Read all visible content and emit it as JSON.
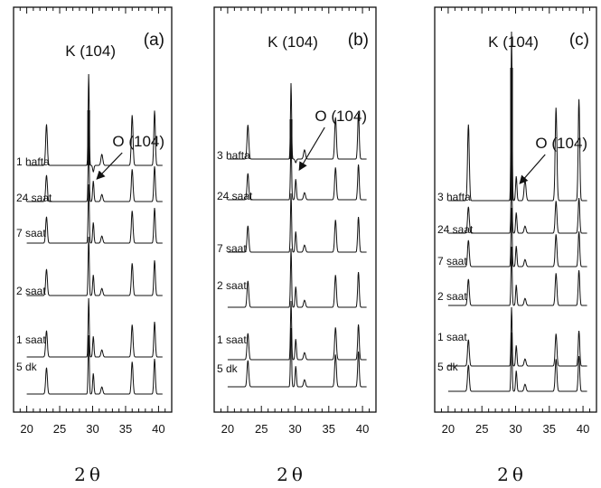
{
  "chart_data": [
    {
      "type": "line",
      "panel_label": "(a)",
      "xlabel": "2θ",
      "xlim": [
        18,
        42
      ],
      "xticks": [
        20,
        25,
        30,
        35,
        40
      ],
      "annotations": [
        {
          "text": "K (104)",
          "x": 29.4
        },
        {
          "text": "O (104)",
          "x": 30.1,
          "arrow": true
        }
      ],
      "series": [
        {
          "name": "1 hafta"
        },
        {
          "name": "24 saat"
        },
        {
          "name": "7 saat"
        },
        {
          "name": "2 saat"
        },
        {
          "name": "1 saat"
        },
        {
          "name": "5 dk"
        }
      ]
    },
    {
      "type": "line",
      "panel_label": "(b)",
      "xlabel": "2θ",
      "xlim": [
        18,
        42
      ],
      "xticks": [
        20,
        25,
        30,
        35,
        40
      ],
      "annotations": [
        {
          "text": "K (104)",
          "x": 29.4
        },
        {
          "text": "O (104)",
          "x": 30.1,
          "arrow": true
        }
      ],
      "series": [
        {
          "name": "3 hafta"
        },
        {
          "name": "24 saat"
        },
        {
          "name": "7 saat"
        },
        {
          "name": "2 saat"
        },
        {
          "name": "1 saat"
        },
        {
          "name": "5 dk"
        }
      ]
    },
    {
      "type": "line",
      "panel_label": "(c)",
      "xlabel": "2θ",
      "xlim": [
        18,
        42
      ],
      "xticks": [
        20,
        25,
        30,
        35,
        40
      ],
      "annotations": [
        {
          "text": "K (104)",
          "x": 29.4
        },
        {
          "text": "O (104)",
          "x": 30.1,
          "arrow": true
        }
      ],
      "series": [
        {
          "name": "3 hafta"
        },
        {
          "name": "24 saat"
        },
        {
          "name": "7 saat"
        },
        {
          "name": "2 saat"
        },
        {
          "name": "1 saat"
        },
        {
          "name": "5 dk"
        }
      ]
    }
  ]
}
